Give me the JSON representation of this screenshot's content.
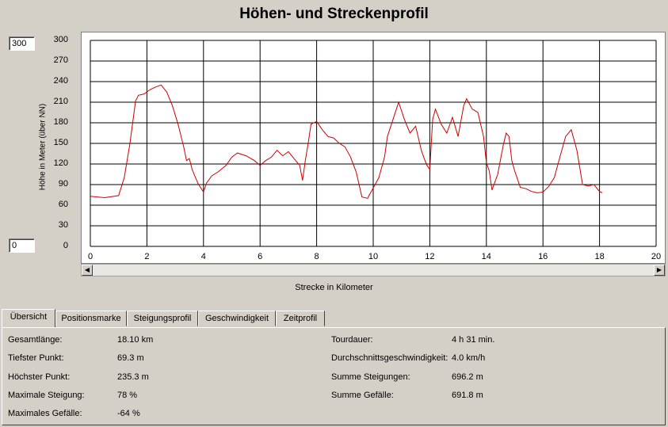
{
  "title": "Höhen- und Streckenprofil",
  "y_max_input": "300",
  "y_min_input": "0",
  "colors": {
    "line": "#cc0000",
    "grid": "#000000",
    "background": "#d4d0c8"
  },
  "chart_data": {
    "type": "line",
    "xlabel": "Strecke in Kilometer",
    "ylabel": "Höhe in Meter (über NN)",
    "xlim": [
      0,
      20
    ],
    "ylim": [
      0,
      300
    ],
    "x_ticks": [
      "0",
      "2",
      "4",
      "6",
      "8",
      "10",
      "12",
      "14",
      "16",
      "18",
      "20"
    ],
    "y_ticks": [
      "300",
      "270",
      "240",
      "210",
      "180",
      "150",
      "120",
      "90",
      "60",
      "30",
      "0"
    ],
    "grid": true,
    "x": [
      0,
      0.5,
      1,
      1.2,
      1.4,
      1.6,
      1.7,
      1.9,
      2.1,
      2.3,
      2.5,
      2.7,
      2.9,
      3.1,
      3.3,
      3.4,
      3.5,
      3.6,
      3.8,
      4.0,
      4.1,
      4.3,
      4.5,
      4.8,
      5.0,
      5.2,
      5.5,
      5.8,
      6.0,
      6.2,
      6.4,
      6.6,
      6.8,
      7.0,
      7.2,
      7.4,
      7.5,
      7.6,
      7.7,
      7.8,
      8.0,
      8.2,
      8.4,
      8.6,
      8.8,
      9.0,
      9.2,
      9.4,
      9.6,
      9.8,
      10.0,
      10.2,
      10.4,
      10.5,
      10.7,
      10.9,
      11.1,
      11.3,
      11.5,
      11.7,
      11.8,
      11.9,
      12.0,
      12.1,
      12.2,
      12.4,
      12.6,
      12.8,
      13.0,
      13.2,
      13.3,
      13.5,
      13.7,
      13.9,
      14.0,
      14.1,
      14.2,
      14.4,
      14.6,
      14.7,
      14.8,
      14.9,
      15.0,
      15.2,
      15.4,
      15.6,
      15.8,
      16.0,
      16.2,
      16.4,
      16.6,
      16.8,
      17.0,
      17.2,
      17.4,
      17.6,
      17.8,
      18.0,
      18.1
    ],
    "y": [
      73,
      71,
      74,
      100,
      150,
      212,
      220,
      222,
      228,
      232,
      235,
      225,
      205,
      178,
      145,
      125,
      128,
      112,
      92,
      79,
      92,
      103,
      108,
      118,
      130,
      136,
      132,
      125,
      118,
      125,
      130,
      140,
      132,
      138,
      128,
      118,
      96,
      125,
      150,
      178,
      182,
      170,
      160,
      158,
      150,
      145,
      130,
      108,
      72,
      70,
      85,
      100,
      130,
      160,
      185,
      210,
      185,
      165,
      175,
      140,
      128,
      118,
      112,
      185,
      200,
      178,
      165,
      188,
      160,
      205,
      215,
      200,
      195,
      160,
      122,
      110,
      82,
      105,
      148,
      165,
      160,
      125,
      110,
      86,
      84,
      80,
      78,
      79,
      87,
      100,
      130,
      160,
      170,
      140,
      90,
      88,
      90,
      80,
      78
    ],
    "data_note": ""
  },
  "tabs": [
    {
      "label": "Übersicht",
      "active": true
    },
    {
      "label": "Positionsmarke",
      "active": false
    },
    {
      "label": "Steigungsprofil",
      "active": false
    },
    {
      "label": "Geschwindigkeit",
      "active": false
    },
    {
      "label": "Zeitprofil",
      "active": false
    }
  ],
  "stats_left": [
    {
      "label": "Gesamtlänge:",
      "value": "18.10 km"
    },
    {
      "label": "Tiefster Punkt:",
      "value": "69.3 m"
    },
    {
      "label": "Höchster Punkt:",
      "value": "235.3 m"
    },
    {
      "label": "Maximale Steigung:",
      "value": "78 %"
    },
    {
      "label": "Maximales Gefälle:",
      "value": "-64 %"
    }
  ],
  "stats_right": [
    {
      "label": "Tourdauer:",
      "value": "4 h 31 min."
    },
    {
      "label": "Durchschnittsgeschwindigkeit:",
      "value": "4.0 km/h"
    },
    {
      "label": "Summe Steigungen:",
      "value": "696.2 m"
    },
    {
      "label": "Summe Gefälle:",
      "value": "691.8 m"
    }
  ]
}
